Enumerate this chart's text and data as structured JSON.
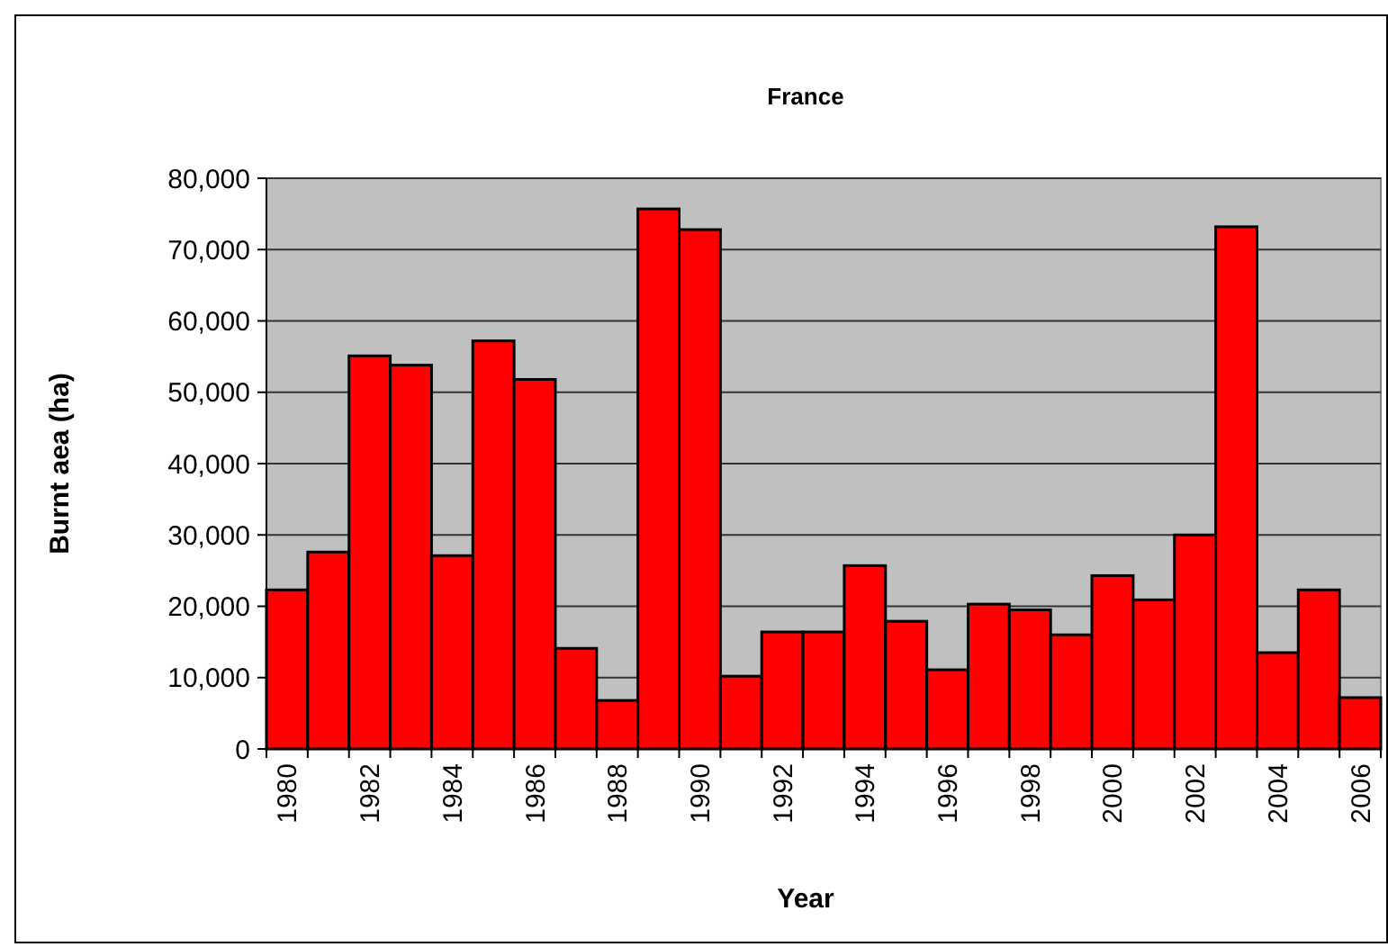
{
  "chart_data": {
    "type": "bar",
    "title": "France",
    "xlabel": "Year",
    "ylabel": "Burnt aea (ha)",
    "categories": [
      "1980",
      null,
      "1982",
      null,
      "1984",
      null,
      "1986",
      null,
      "1988",
      null,
      "1990",
      null,
      "1992",
      null,
      "1994",
      null,
      "1996",
      null,
      "1998",
      null,
      "2000",
      null,
      "2002",
      null,
      "2004",
      null,
      "2006"
    ],
    "values": [
      22300,
      27600,
      55100,
      53800,
      27100,
      57200,
      51800,
      14100,
      6800,
      75700,
      72800,
      10200,
      16400,
      16400,
      25700,
      17900,
      11100,
      20300,
      19500,
      16000,
      24300,
      20900,
      30000,
      73200,
      13500,
      22300,
      7200
    ],
    "color": "#ff0000",
    "ylim": [
      0,
      80000
    ],
    "yticks": [
      {
        "value": 0,
        "label": "0"
      },
      {
        "value": 10000,
        "label": "10,000"
      },
      {
        "value": 20000,
        "label": "20,000"
      },
      {
        "value": 30000,
        "label": "30,000"
      },
      {
        "value": 40000,
        "label": "40,000"
      },
      {
        "value": 50000,
        "label": "50,000"
      },
      {
        "value": 60000,
        "label": "60,000"
      },
      {
        "value": 70000,
        "label": "70,000"
      },
      {
        "value": 80000,
        "label": "80,000"
      }
    ],
    "grid": "y"
  }
}
